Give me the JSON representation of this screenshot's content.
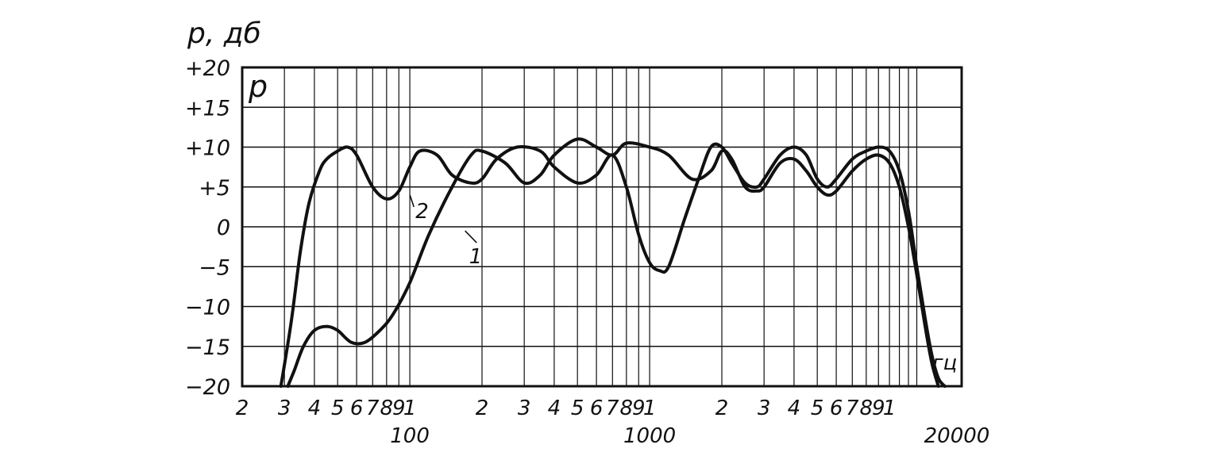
{
  "chart_data": {
    "type": "line",
    "title": "",
    "ylabel": "p, дб",
    "panel_label": "p",
    "xunit": "гц",
    "xscale": "log",
    "xlim": [
      20,
      20000
    ],
    "ylim": [
      -20,
      20
    ],
    "grid": true,
    "yticks": [
      "+20",
      "+15",
      "+10",
      "+5",
      "0",
      "−5",
      "−10",
      "−15",
      "−20"
    ],
    "x_digit_labels": [
      "2",
      "3",
      "4",
      "5",
      "6",
      "7",
      "8",
      "9",
      "1",
      "2",
      "3",
      "4",
      "5",
      "6",
      "7",
      "8",
      "9",
      "1",
      "2",
      "3",
      "4",
      "5",
      "6",
      "7",
      "8",
      "9",
      "1"
    ],
    "x_decade_labels": [
      "100",
      "1000",
      "20000"
    ],
    "series": [
      {
        "name": "1",
        "x": [
          31,
          33,
          36,
          40,
          45,
          50,
          57,
          65,
          75,
          85,
          100,
          120,
          150,
          180,
          200,
          250,
          300,
          350,
          400,
          500,
          600,
          700,
          800,
          1000,
          1200,
          1500,
          1800,
          2000,
          2200,
          2500,
          2800,
          3000,
          3500,
          4000,
          4500,
          5000,
          5500,
          6000,
          7000,
          8000,
          9000,
          10000,
          11000,
          12000,
          13000,
          14000,
          15000,
          16000
        ],
        "y": [
          -20,
          -18,
          -15,
          -13,
          -12.5,
          -13,
          -14.5,
          -14.5,
          -13,
          -11,
          -7,
          -1,
          5,
          9,
          9.5,
          8,
          5.5,
          6.5,
          9,
          11,
          10,
          9,
          10.5,
          10,
          9,
          6,
          7,
          9.5,
          8.5,
          5,
          4.5,
          5,
          8,
          8.5,
          7,
          5,
          4,
          4.5,
          7,
          8.5,
          9,
          8,
          5,
          0,
          -6,
          -12,
          -17,
          -20
        ]
      },
      {
        "name": "2",
        "x": [
          29,
          32,
          35,
          38,
          42,
          45,
          50,
          55,
          60,
          70,
          80,
          90,
          100,
          110,
          130,
          150,
          180,
          200,
          230,
          280,
          350,
          400,
          500,
          600,
          700,
          800,
          900,
          1000,
          1100,
          1200,
          1400,
          1600,
          1800,
          2000,
          2200,
          2500,
          2800,
          3000,
          3500,
          4000,
          4500,
          5000,
          5500,
          6000,
          7000,
          8000,
          9000,
          10000,
          11000,
          12000,
          13000,
          14000,
          15000,
          16000,
          17000
        ],
        "y": [
          -20,
          -12,
          -3,
          3,
          7,
          8.5,
          9.5,
          10,
          9,
          5,
          3.5,
          4.5,
          7.5,
          9.5,
          9,
          6.5,
          5.5,
          6,
          8.5,
          10,
          9.5,
          7.5,
          5.5,
          6.5,
          9,
          5,
          -1,
          -4.5,
          -5.5,
          -5,
          1,
          6,
          10,
          10,
          8,
          5.5,
          5,
          6,
          9,
          10,
          9,
          6,
          5,
          6,
          8.5,
          9.5,
          10,
          9.5,
          7,
          2,
          -5,
          -11,
          -16,
          -19,
          -20
        ]
      }
    ]
  }
}
